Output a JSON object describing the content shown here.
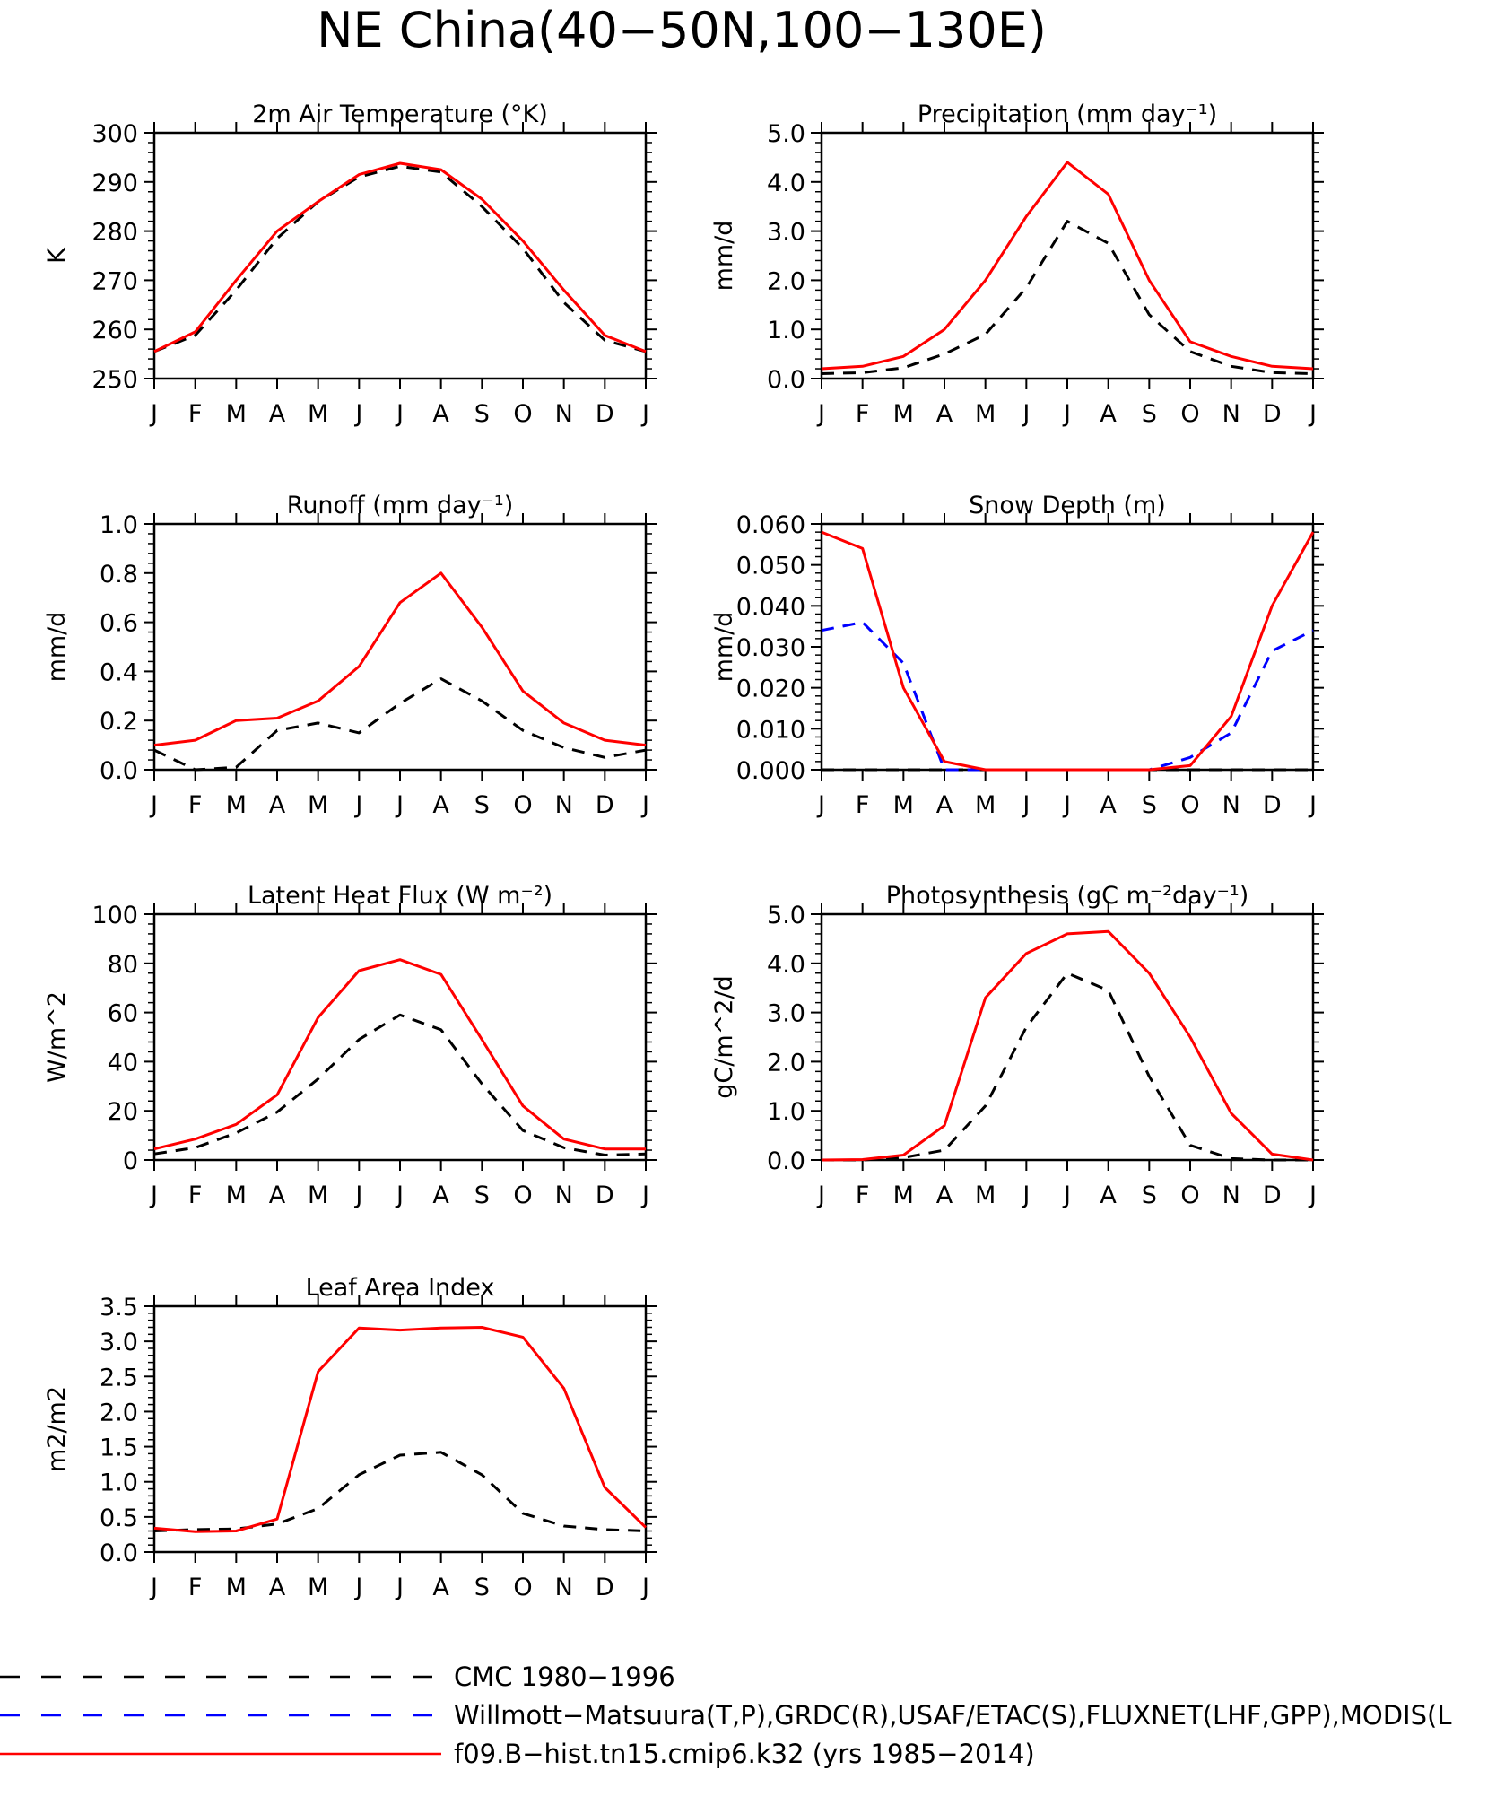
{
  "figure": {
    "title": "NE China(40−50N,100−130E)"
  },
  "chart_data": [
    {
      "type": "line",
      "title": "2m Air Temperature (°K)",
      "ylabel": "K",
      "x": [
        "J",
        "F",
        "M",
        "A",
        "M",
        "J",
        "J",
        "A",
        "S",
        "O",
        "N",
        "D",
        "J"
      ],
      "ylim": [
        250,
        300
      ],
      "yticks": [
        "250",
        "260",
        "270",
        "280",
        "290",
        "300"
      ],
      "series": [
        {
          "name": "CMC 1980−1996",
          "style": "dashed",
          "color": "#000000",
          "values": [
            255.5,
            258.8,
            268.0,
            278.5,
            286.0,
            291.0,
            293.2,
            292.0,
            285.0,
            276.5,
            265.5,
            257.8,
            255.5
          ]
        },
        {
          "name": "f09.B−hist.tn15.cmip6.k32 (yrs 1985−2014)",
          "style": "solid",
          "color": "#ff0000",
          "values": [
            255.5,
            259.5,
            270.0,
            280.0,
            286.0,
            291.5,
            293.8,
            292.5,
            286.5,
            278.0,
            268.0,
            258.8,
            255.5
          ]
        }
      ]
    },
    {
      "type": "line",
      "title": "Precipitation (mm day⁻¹)",
      "ylabel": "mm/d",
      "x": [
        "J",
        "F",
        "M",
        "A",
        "M",
        "J",
        "J",
        "A",
        "S",
        "O",
        "N",
        "D",
        "J"
      ],
      "ylim": [
        0,
        5
      ],
      "yticks": [
        "0.0",
        "1.0",
        "2.0",
        "3.0",
        "4.0",
        "5.0"
      ],
      "series": [
        {
          "name": "CMC 1980−1996",
          "style": "dashed",
          "color": "#000000",
          "values": [
            0.1,
            0.12,
            0.22,
            0.5,
            0.9,
            1.85,
            3.2,
            2.75,
            1.3,
            0.55,
            0.25,
            0.12,
            0.1
          ]
        },
        {
          "name": "f09.B−hist.tn15.cmip6.k32 (yrs 1985−2014)",
          "style": "solid",
          "color": "#ff0000",
          "values": [
            0.2,
            0.25,
            0.45,
            1.0,
            2.0,
            3.3,
            4.4,
            3.75,
            2.0,
            0.75,
            0.45,
            0.25,
            0.2
          ]
        }
      ]
    },
    {
      "type": "line",
      "title": "Runoff (mm day⁻¹)",
      "ylabel": "mm/d",
      "x": [
        "J",
        "F",
        "M",
        "A",
        "M",
        "J",
        "J",
        "A",
        "S",
        "O",
        "N",
        "D",
        "J"
      ],
      "ylim": [
        0,
        1
      ],
      "yticks": [
        "0.0",
        "0.2",
        "0.4",
        "0.6",
        "0.8",
        "1.0"
      ],
      "series": [
        {
          "name": "CMC 1980−1996",
          "style": "dashed",
          "color": "#000000",
          "values": [
            0.08,
            0.0,
            0.01,
            0.16,
            0.19,
            0.15,
            0.27,
            0.37,
            0.28,
            0.16,
            0.09,
            0.05,
            0.08
          ]
        },
        {
          "name": "f09.B−hist.tn15.cmip6.k32 (yrs 1985−2014)",
          "style": "solid",
          "color": "#ff0000",
          "values": [
            0.1,
            0.12,
            0.2,
            0.21,
            0.28,
            0.42,
            0.68,
            0.8,
            0.58,
            0.32,
            0.19,
            0.12,
            0.1
          ]
        }
      ]
    },
    {
      "type": "line",
      "title": "Snow Depth (m)",
      "ylabel": "mm/d",
      "x": [
        "J",
        "F",
        "M",
        "A",
        "M",
        "J",
        "J",
        "A",
        "S",
        "O",
        "N",
        "D",
        "J"
      ],
      "ylim": [
        0,
        0.06
      ],
      "yticks": [
        "0.000",
        "0.010",
        "0.020",
        "0.030",
        "0.040",
        "0.050",
        "0.060"
      ],
      "series": [
        {
          "name": "CMC 1980−1996",
          "style": "dashed",
          "color": "#000000",
          "values": [
            0,
            0,
            0,
            0,
            0,
            0,
            0,
            0,
            0,
            0,
            0,
            0,
            0
          ]
        },
        {
          "name": "Willmott−Matsuura(T,P),GRDC(R),USAF/ETAC(S),FLUXNET(LHF,GPP),MODIS(L",
          "style": "dashed",
          "color": "#0000ff",
          "values": [
            0.034,
            0.036,
            0.026,
            0.0,
            0.0,
            0.0,
            0.0,
            0.0,
            0.0,
            0.003,
            0.009,
            0.029,
            0.034
          ]
        },
        {
          "name": "f09.B−hist.tn15.cmip6.k32 (yrs 1985−2014)",
          "style": "solid",
          "color": "#ff0000",
          "values": [
            0.058,
            0.054,
            0.02,
            0.002,
            0.0,
            0.0,
            0.0,
            0.0,
            0.0,
            0.001,
            0.013,
            0.04,
            0.058
          ]
        }
      ]
    },
    {
      "type": "line",
      "title": "Latent Heat Flux (W m⁻²)",
      "ylabel": "W/m^2",
      "x": [
        "J",
        "F",
        "M",
        "A",
        "M",
        "J",
        "J",
        "A",
        "S",
        "O",
        "N",
        "D",
        "J"
      ],
      "ylim": [
        0,
        100
      ],
      "yticks": [
        "0",
        "20",
        "40",
        "60",
        "80",
        "100"
      ],
      "series": [
        {
          "name": "CMC 1980−1996",
          "style": "dashed",
          "color": "#000000",
          "values": [
            2.5,
            5.0,
            11.0,
            19.5,
            33.0,
            49.0,
            59.0,
            53.0,
            31.0,
            12.0,
            5.0,
            2.0,
            2.5
          ]
        },
        {
          "name": "f09.B−hist.tn15.cmip6.k32 (yrs 1985−2014)",
          "style": "solid",
          "color": "#ff0000",
          "values": [
            4.5,
            8.5,
            14.5,
            26.5,
            58.0,
            77.0,
            81.5,
            75.5,
            49.0,
            22.0,
            8.5,
            4.5,
            4.5
          ]
        }
      ]
    },
    {
      "type": "line",
      "title": "Photosynthesis (gC m⁻²day⁻¹)",
      "ylabel": "gC/m^2/d",
      "x": [
        "J",
        "F",
        "M",
        "A",
        "M",
        "J",
        "J",
        "A",
        "S",
        "O",
        "N",
        "D",
        "J"
      ],
      "ylim": [
        0,
        5
      ],
      "yticks": [
        "0.0",
        "1.0",
        "2.0",
        "3.0",
        "4.0",
        "5.0"
      ],
      "series": [
        {
          "name": "CMC 1980−1996",
          "style": "dashed",
          "color": "#000000",
          "values": [
            0.0,
            0.0,
            0.05,
            0.2,
            1.1,
            2.7,
            3.8,
            3.45,
            1.7,
            0.3,
            0.03,
            0.0,
            0.0
          ]
        },
        {
          "name": "f09.B−hist.tn15.cmip6.k32 (yrs 1985−2014)",
          "style": "solid",
          "color": "#ff0000",
          "values": [
            0.0,
            0.01,
            0.1,
            0.7,
            3.3,
            4.2,
            4.6,
            4.65,
            3.8,
            2.5,
            0.95,
            0.12,
            0.0
          ]
        }
      ]
    },
    {
      "type": "line",
      "title": "Leaf Area Index",
      "ylabel": "m2/m2",
      "x": [
        "J",
        "F",
        "M",
        "A",
        "M",
        "J",
        "J",
        "A",
        "S",
        "O",
        "N",
        "D",
        "J"
      ],
      "ylim": [
        0,
        3.5
      ],
      "yticks": [
        "0.0",
        "0.5",
        "1.0",
        "1.5",
        "2.0",
        "2.5",
        "3.0",
        "3.5"
      ],
      "series": [
        {
          "name": "CMC 1980−1996",
          "style": "dashed",
          "color": "#000000",
          "values": [
            0.3,
            0.32,
            0.33,
            0.4,
            0.62,
            1.1,
            1.38,
            1.42,
            1.1,
            0.55,
            0.37,
            0.32,
            0.3
          ]
        },
        {
          "name": "f09.B−hist.tn15.cmip6.k32 (yrs 1985−2014)",
          "style": "solid",
          "color": "#ff0000",
          "values": [
            0.34,
            0.29,
            0.3,
            0.47,
            2.57,
            3.19,
            3.16,
            3.19,
            3.2,
            3.06,
            2.33,
            0.92,
            0.35
          ]
        }
      ]
    }
  ],
  "legend": [
    {
      "label": "CMC 1980−1996",
      "style": "dashed",
      "color": "#000000"
    },
    {
      "label": "Willmott−Matsuura(T,P),GRDC(R),USAF/ETAC(S),FLUXNET(LHF,GPP),MODIS(L",
      "style": "dashed",
      "color": "#0000ff"
    },
    {
      "label": "f09.B−hist.tn15.cmip6.k32 (yrs 1985−2014)",
      "style": "solid",
      "color": "#ff0000"
    }
  ]
}
